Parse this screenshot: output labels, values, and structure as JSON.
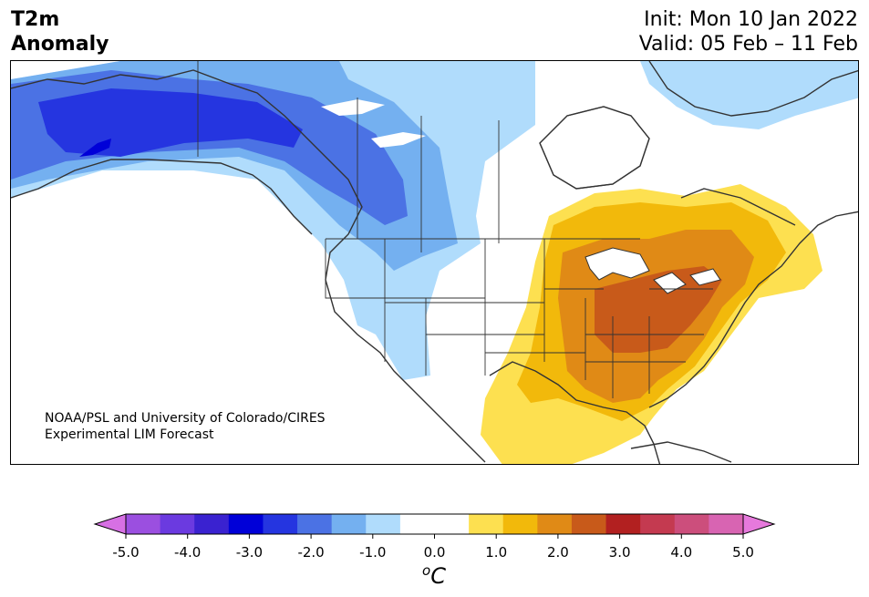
{
  "title": {
    "line1": "T2m",
    "line2": "Anomaly"
  },
  "dates": {
    "init": "Init: Mon 10 Jan 2022",
    "valid": "Valid: 05 Feb – 11 Feb"
  },
  "credit": {
    "line1": "NOAA/PSL and University of Colorado/CIRES",
    "line2": "Experimental LIM Forecast"
  },
  "colorbar": {
    "colors": [
      "#d770e4",
      "#9b4fe0",
      "#6b3ae0",
      "#3a22d0",
      "#0000d8",
      "#2535e0",
      "#4b72e4",
      "#74b0f0",
      "#b0dcfc",
      "#ffffff",
      "#ffffff",
      "#fde050",
      "#f2b90b",
      "#e08a16",
      "#c85a1a",
      "#b22020",
      "#c43a50",
      "#cc4e7c",
      "#d864b2",
      "#e679dc"
    ],
    "ticks": [
      "-5.0",
      "-4.0",
      "-3.0",
      "-2.0",
      "-1.0",
      "0.0",
      "1.0",
      "2.0",
      "3.0",
      "4.0",
      "5.0"
    ],
    "unit_sup": "o",
    "unit": "C"
  }
}
